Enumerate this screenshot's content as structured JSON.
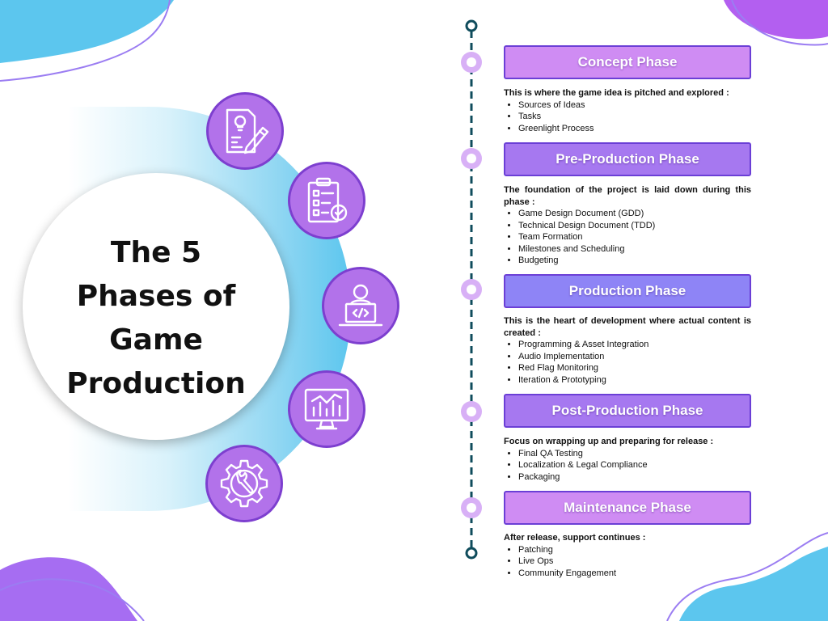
{
  "title": "The 5 Phases of Game Production",
  "title_lines": [
    "The 5",
    "Phases of",
    "Game",
    "Production"
  ],
  "colors": {
    "purple": "#b272ea",
    "purple_dark": "#7d3fcf",
    "blue": "#5cc6ee",
    "timeline": "#0f4c5c",
    "concept_box": "#cf8cf3",
    "preprod_box": "#a678f0",
    "production_box": "#8e84f6",
    "postprod_box": "#a678f0",
    "maintenance_box": "#cf8cf3"
  },
  "icons": [
    "idea-document-icon",
    "checklist-icon",
    "developer-icon",
    "analytics-monitor-icon",
    "wrench-gear-icon"
  ],
  "phases": [
    {
      "title": "Concept Phase",
      "intro": "This is where the game idea is pitched and explored :",
      "items": [
        "Sources of Ideas",
        "Tasks",
        "Greenlight Process"
      ]
    },
    {
      "title": "Pre-Production Phase",
      "intro": "The foundation of the project is laid down during this phase :",
      "items": [
        "Game Design Document (GDD)",
        "Technical Design Document (TDD)",
        "Team Formation",
        "Milestones and Scheduling",
        "Budgeting"
      ]
    },
    {
      "title": "Production Phase",
      "intro": "This is the heart of development where actual content is created :",
      "items": [
        "Programming & Asset Integration",
        "Audio Implementation",
        "Red Flag Monitoring",
        "Iteration & Prototyping"
      ]
    },
    {
      "title": "Post-Production Phase",
      "intro": "Focus on wrapping up and preparing for release :",
      "items": [
        "Final QA Testing",
        "Localization & Legal Compliance",
        "Packaging"
      ]
    },
    {
      "title": "Maintenance Phase",
      "intro": "After release, support continues :",
      "items": [
        "Patching",
        "Live Ops",
        "Community Engagement"
      ]
    }
  ]
}
